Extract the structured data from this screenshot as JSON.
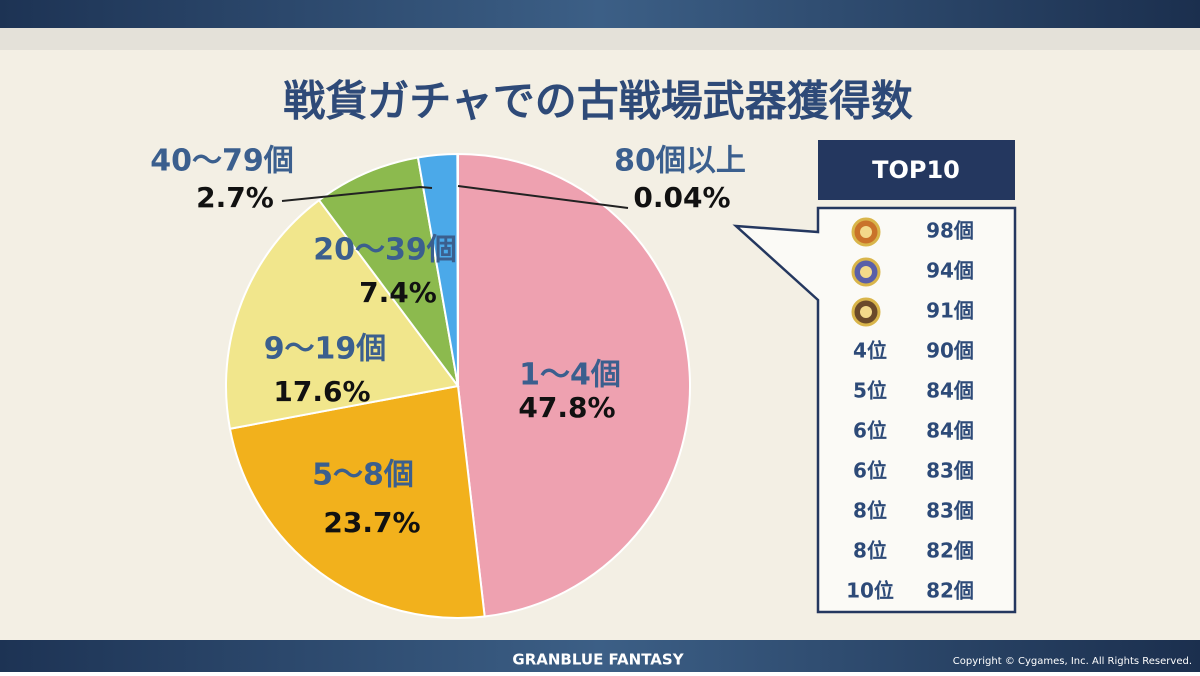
{
  "chart_data": {
    "type": "pie",
    "title": "戦貨ガチャでの古戦場武器獲得数",
    "categories": [
      "1～4個",
      "5～8個",
      "9～19個",
      "20～39個",
      "40～79個",
      "80個以上"
    ],
    "values": [
      47.8,
      23.7,
      17.6,
      7.4,
      2.7,
      0.04
    ],
    "value_labels": [
      "47.8%",
      "23.7%",
      "17.6%",
      "7.4%",
      "2.7%",
      "0.04%"
    ],
    "colors": [
      "#eea1b0",
      "#f2b11c",
      "#f1e68c",
      "#8cba4e",
      "#4ba9e9",
      "#b784d6"
    ]
  },
  "top10": {
    "title": "TOP10",
    "rows": [
      {
        "count": "98個"
      },
      {
        "count": "94個"
      },
      {
        "count": "91個"
      },
      {
        "rank": "4位",
        "count": "90個"
      },
      {
        "rank": "5位",
        "count": "84個"
      },
      {
        "rank": "6位",
        "count": "84個"
      },
      {
        "rank": "6位",
        "count": "83個"
      },
      {
        "rank": "8位",
        "count": "83個"
      },
      {
        "rank": "8位",
        "count": "82個"
      },
      {
        "rank": "10位",
        "count": "82個"
      }
    ]
  },
  "footer": {
    "logo": "GRANBLUE FANTASY",
    "copyright": "Copyright © Cygames, Inc. All Rights Reserved."
  }
}
